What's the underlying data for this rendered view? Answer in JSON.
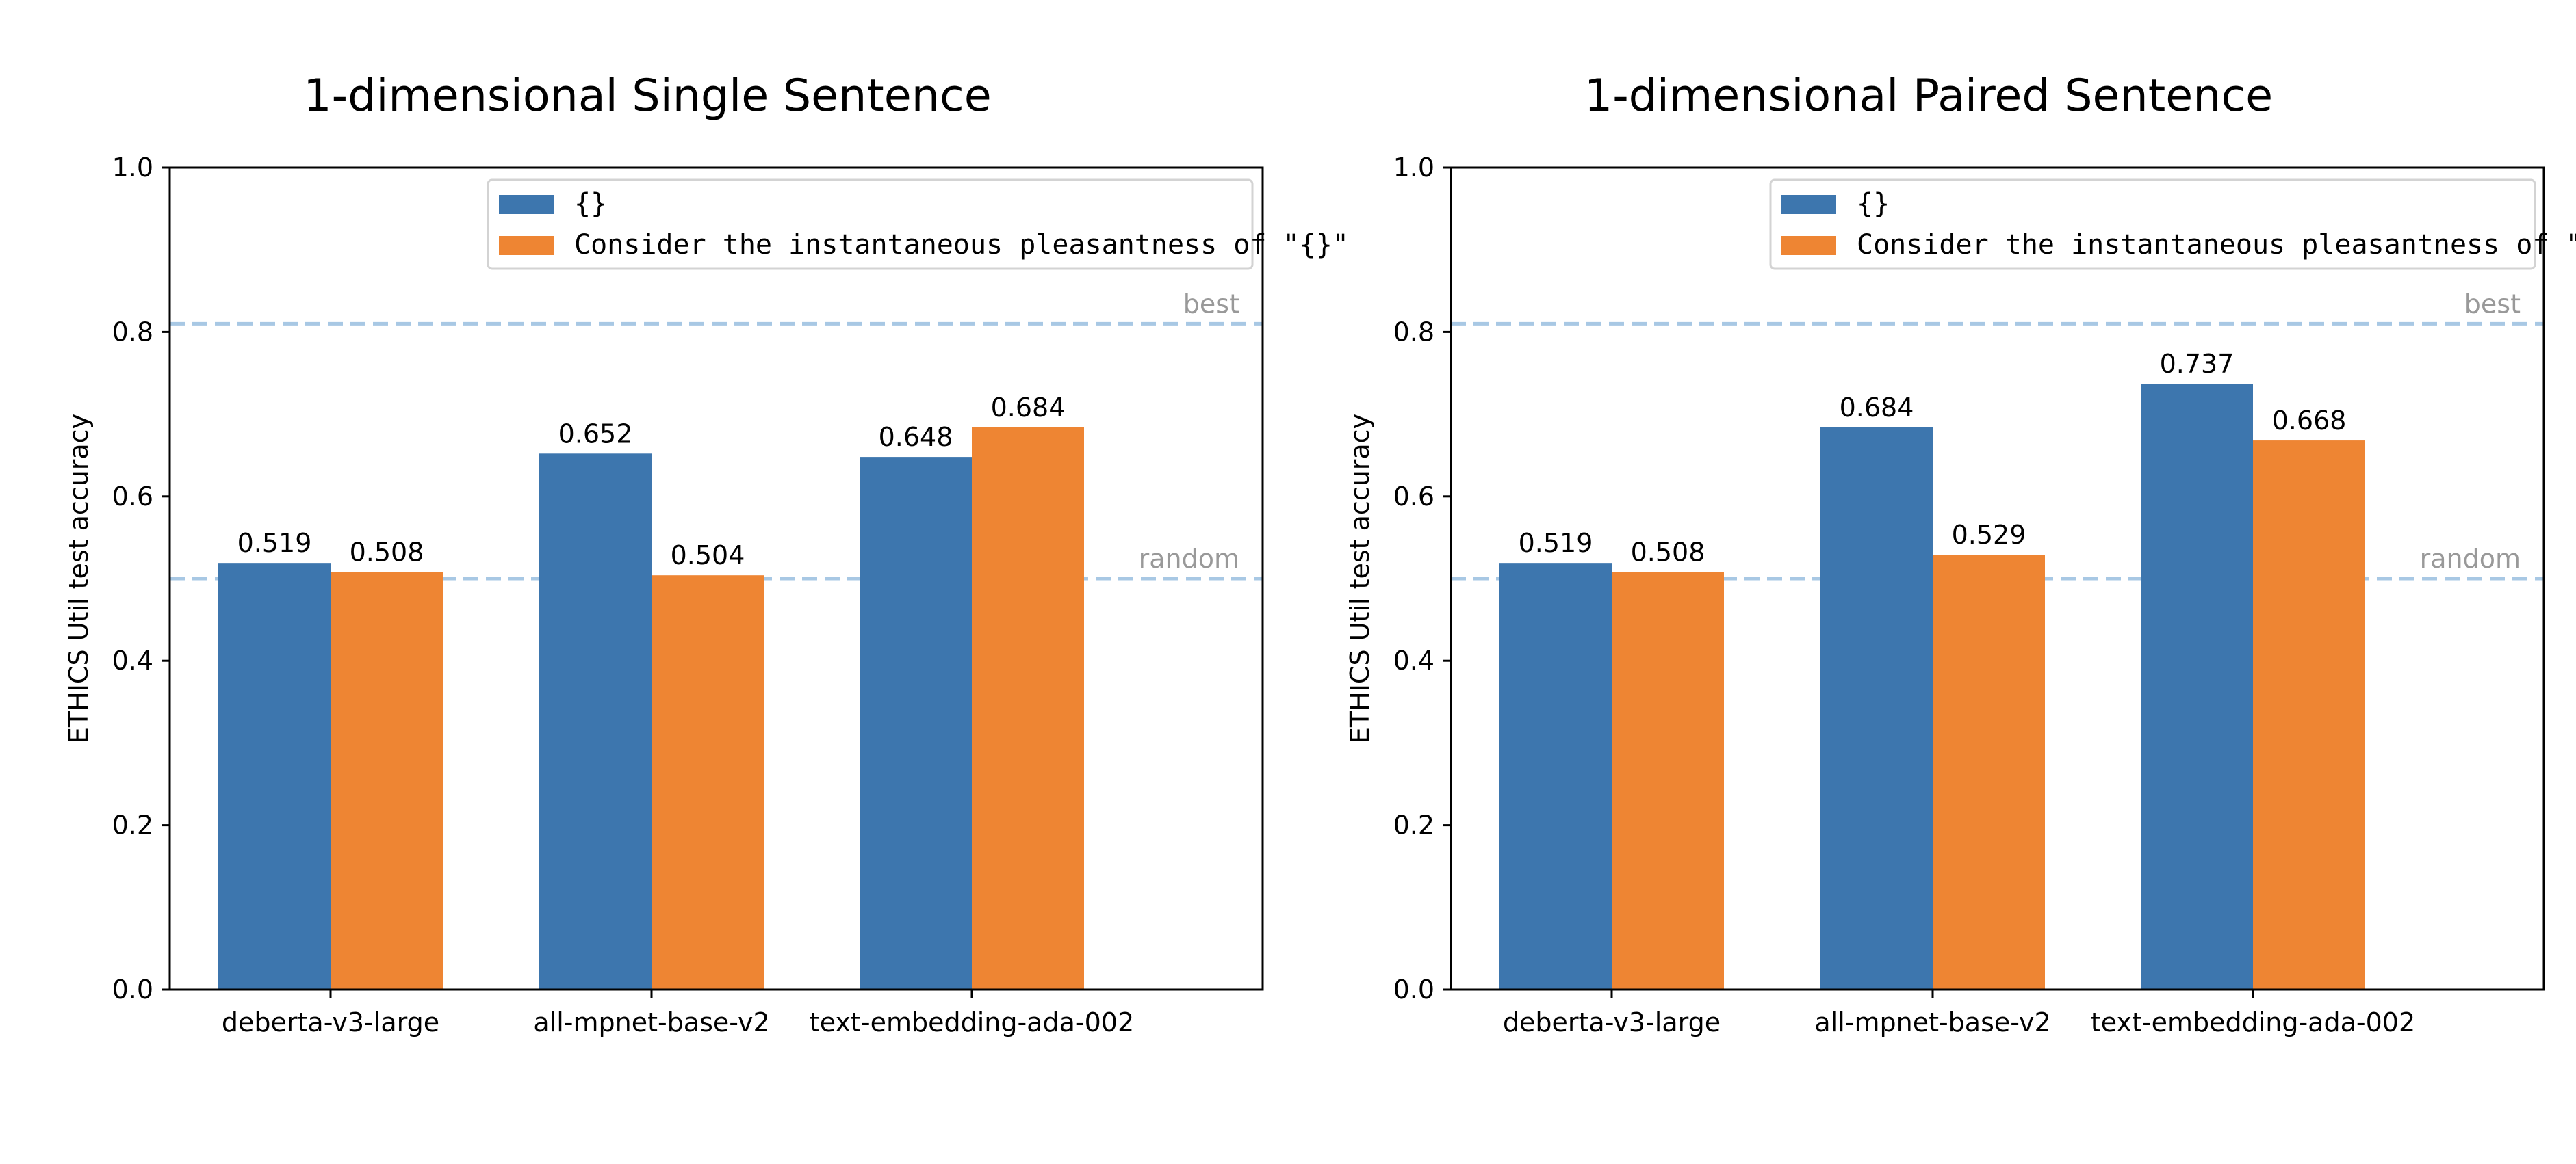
{
  "chart_data": [
    {
      "type": "bar",
      "title": "1-dimensional Single Sentence",
      "xlabel": "",
      "ylabel": "ETHICS Util test accuracy",
      "ylim": [
        0,
        1.0
      ],
      "yticks": [
        "0.0",
        "0.2",
        "0.4",
        "0.6",
        "0.8",
        "1.0"
      ],
      "categories": [
        "deberta-v3-large",
        "all-mpnet-base-v2",
        "text-embedding-ada-002"
      ],
      "series": [
        {
          "name": "{}",
          "color": "#3d76ae",
          "values": [
            0.519,
            0.652,
            0.648
          ],
          "labels": [
            "0.519",
            "0.652",
            "0.648"
          ]
        },
        {
          "name": "Consider the instantaneous pleasantness of \"{}\"",
          "color": "#ee8533",
          "values": [
            0.508,
            0.504,
            0.684
          ],
          "labels": [
            "0.508",
            "0.504",
            "0.684"
          ]
        }
      ],
      "reference_lines": [
        {
          "label": "best",
          "value": 0.81,
          "color": "#a8c8e4"
        },
        {
          "label": "random",
          "value": 0.5,
          "color": "#a8c8e4"
        }
      ],
      "legend_placement": "upper-center",
      "grid": false
    },
    {
      "type": "bar",
      "title": "1-dimensional Paired Sentence",
      "xlabel": "",
      "ylabel": "ETHICS Util test accuracy",
      "ylim": [
        0,
        1.0
      ],
      "yticks": [
        "0.0",
        "0.2",
        "0.4",
        "0.6",
        "0.8",
        "1.0"
      ],
      "categories": [
        "deberta-v3-large",
        "all-mpnet-base-v2",
        "text-embedding-ada-002"
      ],
      "series": [
        {
          "name": "{}",
          "color": "#3d76ae",
          "values": [
            0.519,
            0.684,
            0.737
          ],
          "labels": [
            "0.519",
            "0.684",
            "0.737"
          ]
        },
        {
          "name": "Consider the instantaneous pleasantness of \"{}\"",
          "color": "#ee8533",
          "values": [
            0.508,
            0.529,
            0.668
          ],
          "labels": [
            "0.508",
            "0.529",
            "0.668"
          ]
        }
      ],
      "reference_lines": [
        {
          "label": "best",
          "value": 0.81,
          "color": "#a8c8e4"
        },
        {
          "label": "random",
          "value": 0.5,
          "color": "#a8c8e4"
        }
      ],
      "legend_placement": "upper-center",
      "grid": false
    }
  ]
}
